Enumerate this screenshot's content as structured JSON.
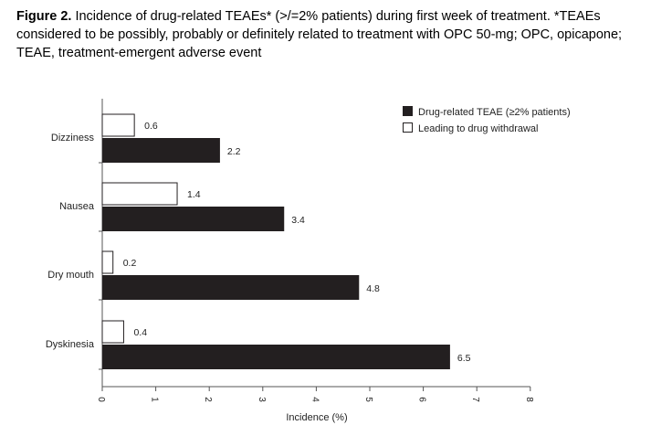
{
  "caption": {
    "label": "Figure 2.",
    "text": " Incidence of drug-related TEAEs* (>/=2% patients) during first week of treatment. *TEAEs considered to be possibly, probably or definitely related to treatment with OPC 50-mg; OPC, opicapone; TEAE, treatment-emergent adverse event"
  },
  "chart_data": {
    "type": "bar",
    "orientation": "horizontal",
    "categories": [
      "Dizziness",
      "Nausea",
      "Dry mouth",
      "Dyskinesia"
    ],
    "series": [
      {
        "name": "Drug-related TEAE (≥2% patients)",
        "values": [
          2.2,
          3.4,
          4.8,
          6.5
        ],
        "color": "#231f20"
      },
      {
        "name": "Leading to drug withdrawal",
        "values": [
          0.6,
          1.4,
          0.2,
          0.4
        ],
        "color": "#ffffff"
      }
    ],
    "xlabel": "Incidence (%)",
    "ylabel": "",
    "xlim": [
      0,
      8
    ],
    "xticks": [
      "0",
      "1",
      "2",
      "3",
      "4",
      "5",
      "6",
      "7",
      "8"
    ],
    "grid": false,
    "legend_position": "top-right"
  }
}
